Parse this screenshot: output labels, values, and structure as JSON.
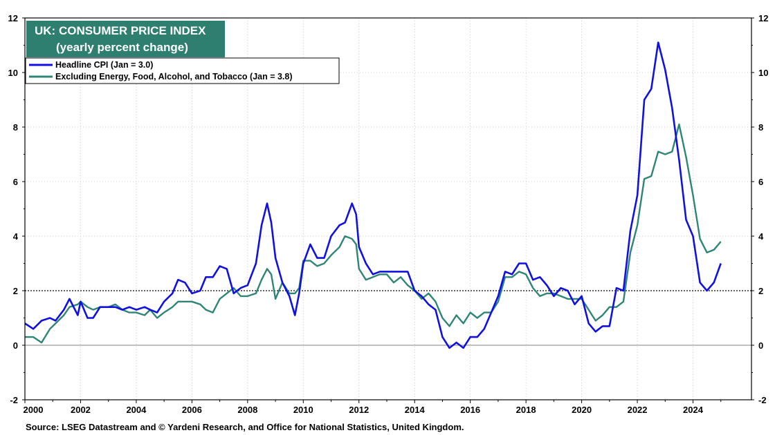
{
  "title_line1": "UK: CONSUMER PRICE INDEX",
  "title_line2": "(yearly percent change)",
  "source": "Source: LSEG Datastream and © Yardeni Research, and Office for National Statistics, United Kingdom.",
  "colors": {
    "title_bg": "#2e7f70",
    "headline": "#1010e0",
    "core": "#2e8576",
    "grid": "#bdbdbd"
  },
  "chart_data": {
    "type": "line",
    "xlabel": "",
    "ylabel": "",
    "xlim": [
      2000,
      2026.1
    ],
    "ylim": [
      -2,
      12
    ],
    "x_ticks": [
      "2000",
      "2002",
      "2004",
      "2006",
      "2008",
      "2010",
      "2012",
      "2014",
      "2016",
      "2018",
      "2020",
      "2022",
      "2024"
    ],
    "y_ticks_left": [
      "-2",
      "0",
      "2",
      "4",
      "6",
      "8",
      "10",
      "12"
    ],
    "y_ticks_right": [
      "-2",
      "0",
      "2",
      "4",
      "6",
      "8",
      "10",
      "12"
    ],
    "reference_lines": [
      {
        "y": 2,
        "style": "dotted"
      },
      {
        "y": 0,
        "style": "solid-thin"
      }
    ],
    "grid": true,
    "legend_position": "top-left",
    "series": [
      {
        "name": "Headline CPI (Jan = 3.0)",
        "points": [
          [
            2000.0,
            0.8
          ],
          [
            2000.3,
            0.6
          ],
          [
            2000.6,
            0.9
          ],
          [
            2000.9,
            1.0
          ],
          [
            2001.1,
            0.9
          ],
          [
            2001.4,
            1.3
          ],
          [
            2001.6,
            1.7
          ],
          [
            2001.9,
            1.1
          ],
          [
            2002.0,
            1.6
          ],
          [
            2002.25,
            1.0
          ],
          [
            2002.45,
            1.0
          ],
          [
            2002.7,
            1.4
          ],
          [
            2003.0,
            1.4
          ],
          [
            2003.25,
            1.4
          ],
          [
            2003.5,
            1.3
          ],
          [
            2003.75,
            1.4
          ],
          [
            2004.0,
            1.3
          ],
          [
            2004.3,
            1.4
          ],
          [
            2004.5,
            1.3
          ],
          [
            2004.75,
            1.2
          ],
          [
            2005.0,
            1.6
          ],
          [
            2005.3,
            1.9
          ],
          [
            2005.5,
            2.4
          ],
          [
            2005.75,
            2.3
          ],
          [
            2006.0,
            1.9
          ],
          [
            2006.3,
            2.0
          ],
          [
            2006.5,
            2.5
          ],
          [
            2006.75,
            2.5
          ],
          [
            2007.0,
            2.9
          ],
          [
            2007.25,
            2.8
          ],
          [
            2007.5,
            1.9
          ],
          [
            2007.75,
            2.1
          ],
          [
            2008.0,
            2.2
          ],
          [
            2008.3,
            3.0
          ],
          [
            2008.5,
            4.4
          ],
          [
            2008.7,
            5.2
          ],
          [
            2008.85,
            4.5
          ],
          [
            2009.0,
            3.2
          ],
          [
            2009.25,
            2.3
          ],
          [
            2009.5,
            1.8
          ],
          [
            2009.7,
            1.1
          ],
          [
            2009.85,
            1.9
          ],
          [
            2010.0,
            3.0
          ],
          [
            2010.25,
            3.7
          ],
          [
            2010.5,
            3.2
          ],
          [
            2010.75,
            3.2
          ],
          [
            2011.0,
            4.0
          ],
          [
            2011.3,
            4.4
          ],
          [
            2011.5,
            4.5
          ],
          [
            2011.75,
            5.2
          ],
          [
            2011.9,
            4.8
          ],
          [
            2012.0,
            3.6
          ],
          [
            2012.25,
            3.0
          ],
          [
            2012.5,
            2.6
          ],
          [
            2012.75,
            2.7
          ],
          [
            2013.0,
            2.7
          ],
          [
            2013.25,
            2.7
          ],
          [
            2013.5,
            2.7
          ],
          [
            2013.75,
            2.7
          ],
          [
            2014.0,
            2.0
          ],
          [
            2014.25,
            1.8
          ],
          [
            2014.5,
            1.5
          ],
          [
            2014.75,
            1.3
          ],
          [
            2015.0,
            0.3
          ],
          [
            2015.25,
            -0.1
          ],
          [
            2015.5,
            0.1
          ],
          [
            2015.75,
            -0.1
          ],
          [
            2016.0,
            0.3
          ],
          [
            2016.25,
            0.3
          ],
          [
            2016.5,
            0.6
          ],
          [
            2016.75,
            1.2
          ],
          [
            2017.0,
            1.8
          ],
          [
            2017.25,
            2.7
          ],
          [
            2017.5,
            2.6
          ],
          [
            2017.75,
            3.0
          ],
          [
            2018.0,
            3.0
          ],
          [
            2018.25,
            2.4
          ],
          [
            2018.5,
            2.5
          ],
          [
            2018.75,
            2.2
          ],
          [
            2019.0,
            1.8
          ],
          [
            2019.25,
            2.1
          ],
          [
            2019.5,
            2.0
          ],
          [
            2019.75,
            1.5
          ],
          [
            2020.0,
            1.8
          ],
          [
            2020.25,
            0.8
          ],
          [
            2020.5,
            0.5
          ],
          [
            2020.75,
            0.7
          ],
          [
            2021.0,
            0.7
          ],
          [
            2021.25,
            2.1
          ],
          [
            2021.5,
            2.0
          ],
          [
            2021.75,
            4.2
          ],
          [
            2022.0,
            5.5
          ],
          [
            2022.25,
            9.0
          ],
          [
            2022.5,
            9.4
          ],
          [
            2022.75,
            11.1
          ],
          [
            2023.0,
            10.1
          ],
          [
            2023.25,
            8.7
          ],
          [
            2023.5,
            6.8
          ],
          [
            2023.75,
            4.6
          ],
          [
            2024.0,
            4.0
          ],
          [
            2024.25,
            2.3
          ],
          [
            2024.5,
            2.0
          ],
          [
            2024.75,
            2.3
          ],
          [
            2025.0,
            3.0
          ]
        ]
      },
      {
        "name": "Excluding Energy, Food, Alcohol, and Tobacco (Jan = 3.8)",
        "points": [
          [
            2000.0,
            0.3
          ],
          [
            2000.3,
            0.3
          ],
          [
            2000.6,
            0.1
          ],
          [
            2000.9,
            0.6
          ],
          [
            2001.1,
            0.8
          ],
          [
            2001.4,
            1.1
          ],
          [
            2001.6,
            1.4
          ],
          [
            2001.9,
            1.5
          ],
          [
            2002.0,
            1.6
          ],
          [
            2002.25,
            1.4
          ],
          [
            2002.45,
            1.3
          ],
          [
            2002.7,
            1.4
          ],
          [
            2003.0,
            1.4
          ],
          [
            2003.25,
            1.5
          ],
          [
            2003.5,
            1.3
          ],
          [
            2003.75,
            1.2
          ],
          [
            2004.0,
            1.2
          ],
          [
            2004.3,
            1.1
          ],
          [
            2004.5,
            1.3
          ],
          [
            2004.75,
            1.0
          ],
          [
            2005.0,
            1.2
          ],
          [
            2005.3,
            1.4
          ],
          [
            2005.5,
            1.6
          ],
          [
            2005.75,
            1.6
          ],
          [
            2006.0,
            1.6
          ],
          [
            2006.3,
            1.5
          ],
          [
            2006.5,
            1.3
          ],
          [
            2006.75,
            1.2
          ],
          [
            2007.0,
            1.7
          ],
          [
            2007.25,
            1.9
          ],
          [
            2007.5,
            2.1
          ],
          [
            2007.75,
            1.8
          ],
          [
            2008.0,
            1.8
          ],
          [
            2008.3,
            1.9
          ],
          [
            2008.5,
            2.4
          ],
          [
            2008.7,
            2.8
          ],
          [
            2008.85,
            2.6
          ],
          [
            2009.0,
            1.7
          ],
          [
            2009.25,
            2.3
          ],
          [
            2009.5,
            1.9
          ],
          [
            2009.7,
            1.9
          ],
          [
            2009.85,
            2.1
          ],
          [
            2010.0,
            3.1
          ],
          [
            2010.25,
            3.1
          ],
          [
            2010.5,
            2.9
          ],
          [
            2010.75,
            3.0
          ],
          [
            2011.0,
            3.3
          ],
          [
            2011.3,
            3.6
          ],
          [
            2011.5,
            4.0
          ],
          [
            2011.75,
            3.9
          ],
          [
            2011.9,
            3.7
          ],
          [
            2012.0,
            2.8
          ],
          [
            2012.25,
            2.4
          ],
          [
            2012.5,
            2.5
          ],
          [
            2012.75,
            2.6
          ],
          [
            2013.0,
            2.6
          ],
          [
            2013.25,
            2.3
          ],
          [
            2013.5,
            2.5
          ],
          [
            2013.75,
            2.2
          ],
          [
            2014.0,
            2.0
          ],
          [
            2014.25,
            1.7
          ],
          [
            2014.5,
            1.9
          ],
          [
            2014.75,
            1.6
          ],
          [
            2015.0,
            1.0
          ],
          [
            2015.25,
            0.7
          ],
          [
            2015.5,
            1.1
          ],
          [
            2015.75,
            0.8
          ],
          [
            2016.0,
            1.2
          ],
          [
            2016.25,
            1.0
          ],
          [
            2016.5,
            1.2
          ],
          [
            2016.75,
            1.2
          ],
          [
            2017.0,
            1.6
          ],
          [
            2017.25,
            2.5
          ],
          [
            2017.5,
            2.5
          ],
          [
            2017.75,
            2.7
          ],
          [
            2018.0,
            2.6
          ],
          [
            2018.25,
            2.1
          ],
          [
            2018.5,
            1.8
          ],
          [
            2018.75,
            1.9
          ],
          [
            2019.0,
            1.9
          ],
          [
            2019.25,
            1.8
          ],
          [
            2019.5,
            1.7
          ],
          [
            2019.75,
            1.7
          ],
          [
            2020.0,
            1.7
          ],
          [
            2020.25,
            1.3
          ],
          [
            2020.5,
            0.9
          ],
          [
            2020.75,
            1.1
          ],
          [
            2021.0,
            1.4
          ],
          [
            2021.25,
            1.4
          ],
          [
            2021.5,
            1.6
          ],
          [
            2021.75,
            3.4
          ],
          [
            2022.0,
            4.4
          ],
          [
            2022.25,
            6.1
          ],
          [
            2022.5,
            6.2
          ],
          [
            2022.75,
            7.1
          ],
          [
            2023.0,
            7.0
          ],
          [
            2023.25,
            7.1
          ],
          [
            2023.5,
            8.1
          ],
          [
            2023.75,
            6.9
          ],
          [
            2024.0,
            5.5
          ],
          [
            2024.25,
            3.9
          ],
          [
            2024.5,
            3.4
          ],
          [
            2024.75,
            3.5
          ],
          [
            2025.0,
            3.8
          ]
        ]
      }
    ]
  }
}
